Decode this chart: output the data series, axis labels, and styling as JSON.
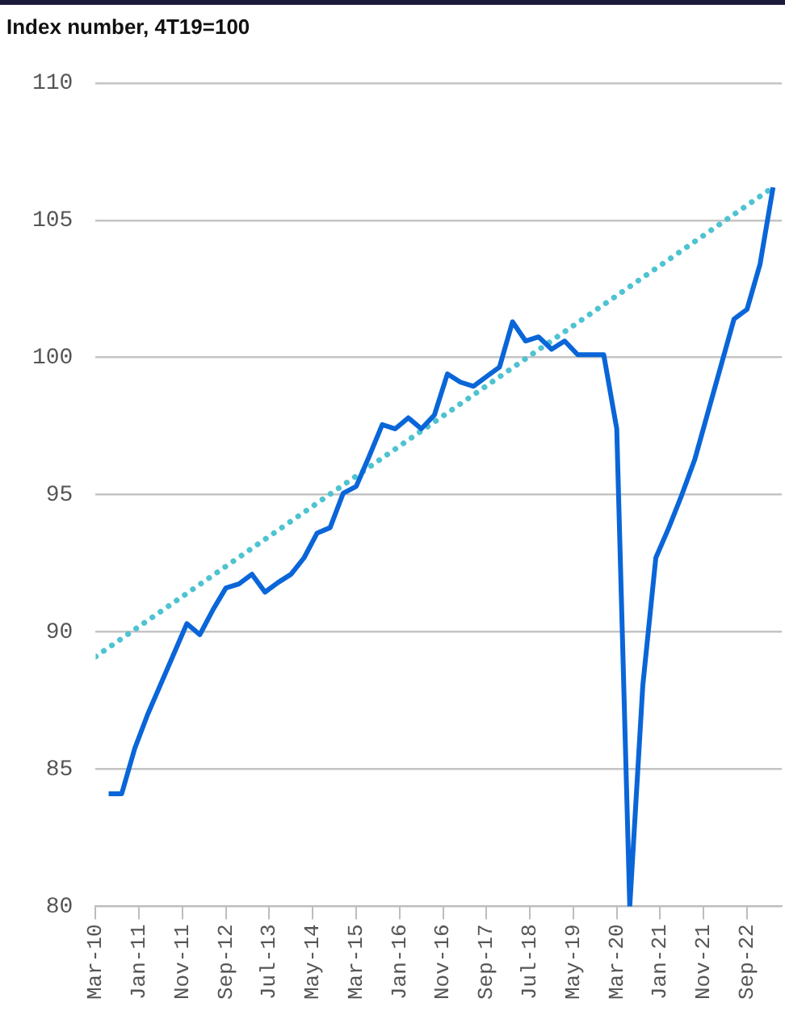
{
  "chart_data": {
    "type": "line",
    "title": "Index number, 4T19=100",
    "x": [
      "2010-06",
      "2010-09",
      "2010-12",
      "2011-03",
      "2011-06",
      "2011-09",
      "2011-12",
      "2012-03",
      "2012-06",
      "2012-09",
      "2012-12",
      "2013-03",
      "2013-06",
      "2013-09",
      "2013-12",
      "2014-03",
      "2014-06",
      "2014-09",
      "2014-12",
      "2015-03",
      "2015-06",
      "2015-09",
      "2015-12",
      "2016-03",
      "2016-06",
      "2016-09",
      "2016-12",
      "2017-03",
      "2017-06",
      "2017-09",
      "2017-12",
      "2018-03",
      "2018-06",
      "2018-09",
      "2018-12",
      "2019-03",
      "2019-06",
      "2019-09",
      "2019-12",
      "2020-03",
      "2020-06",
      "2020-09",
      "2020-12",
      "2021-03",
      "2021-06",
      "2021-09",
      "2021-12",
      "2022-03",
      "2022-06",
      "2022-09",
      "2022-12",
      "2023-03"
    ],
    "series": [
      {
        "color": "#0a66d8",
        "values": [
          84.1,
          84.1,
          85.75,
          87.0,
          88.1,
          89.2,
          90.3,
          89.9,
          90.8,
          91.6,
          91.75,
          92.1,
          91.45,
          91.8,
          92.1,
          92.7,
          93.6,
          93.8,
          95.05,
          95.3,
          96.4,
          97.55,
          97.4,
          97.8,
          97.4,
          97.9,
          99.4,
          99.1,
          98.95,
          99.3,
          99.65,
          101.3,
          100.6,
          100.75,
          100.3,
          100.6,
          100.1,
          100.1,
          100.1,
          97.4,
          80.0,
          88.05,
          92.7,
          93.8,
          95.0,
          96.3,
          98.0,
          99.7,
          101.4,
          101.75,
          103.4,
          106.2
        ]
      },
      {
        "color": "#4fc3d1",
        "line_style": "dotted",
        "x": [
          "2010-03",
          "2023-03"
        ],
        "values": [
          89.1,
          106.2
        ]
      }
    ],
    "xlim": [
      "2010-03",
      "2023-05"
    ],
    "xticks": [
      {
        "value": "2010-03",
        "label": "Mar-10"
      },
      {
        "value": "2011-01",
        "label": "Jan-11"
      },
      {
        "value": "2011-11",
        "label": "Nov-11"
      },
      {
        "value": "2012-09",
        "label": "Sep-12"
      },
      {
        "value": "2013-07",
        "label": "Jul-13"
      },
      {
        "value": "2014-05",
        "label": "May-14"
      },
      {
        "value": "2015-03",
        "label": "Mar-15"
      },
      {
        "value": "2016-01",
        "label": "Jan-16"
      },
      {
        "value": "2016-11",
        "label": "Nov-16"
      },
      {
        "value": "2017-09",
        "label": "Sep-17"
      },
      {
        "value": "2018-07",
        "label": "Jul-18"
      },
      {
        "value": "2019-05",
        "label": "May-19"
      },
      {
        "value": "2020-03",
        "label": "Mar-20"
      },
      {
        "value": "2021-01",
        "label": "Jan-21"
      },
      {
        "value": "2021-11",
        "label": "Nov-21"
      },
      {
        "value": "2022-09",
        "label": "Sep-22"
      }
    ],
    "ylim": [
      80,
      110
    ],
    "yticks": [
      80,
      85,
      90,
      95,
      100,
      105,
      110
    ],
    "grid": "y",
    "marker": "none",
    "line_style": "solid"
  }
}
